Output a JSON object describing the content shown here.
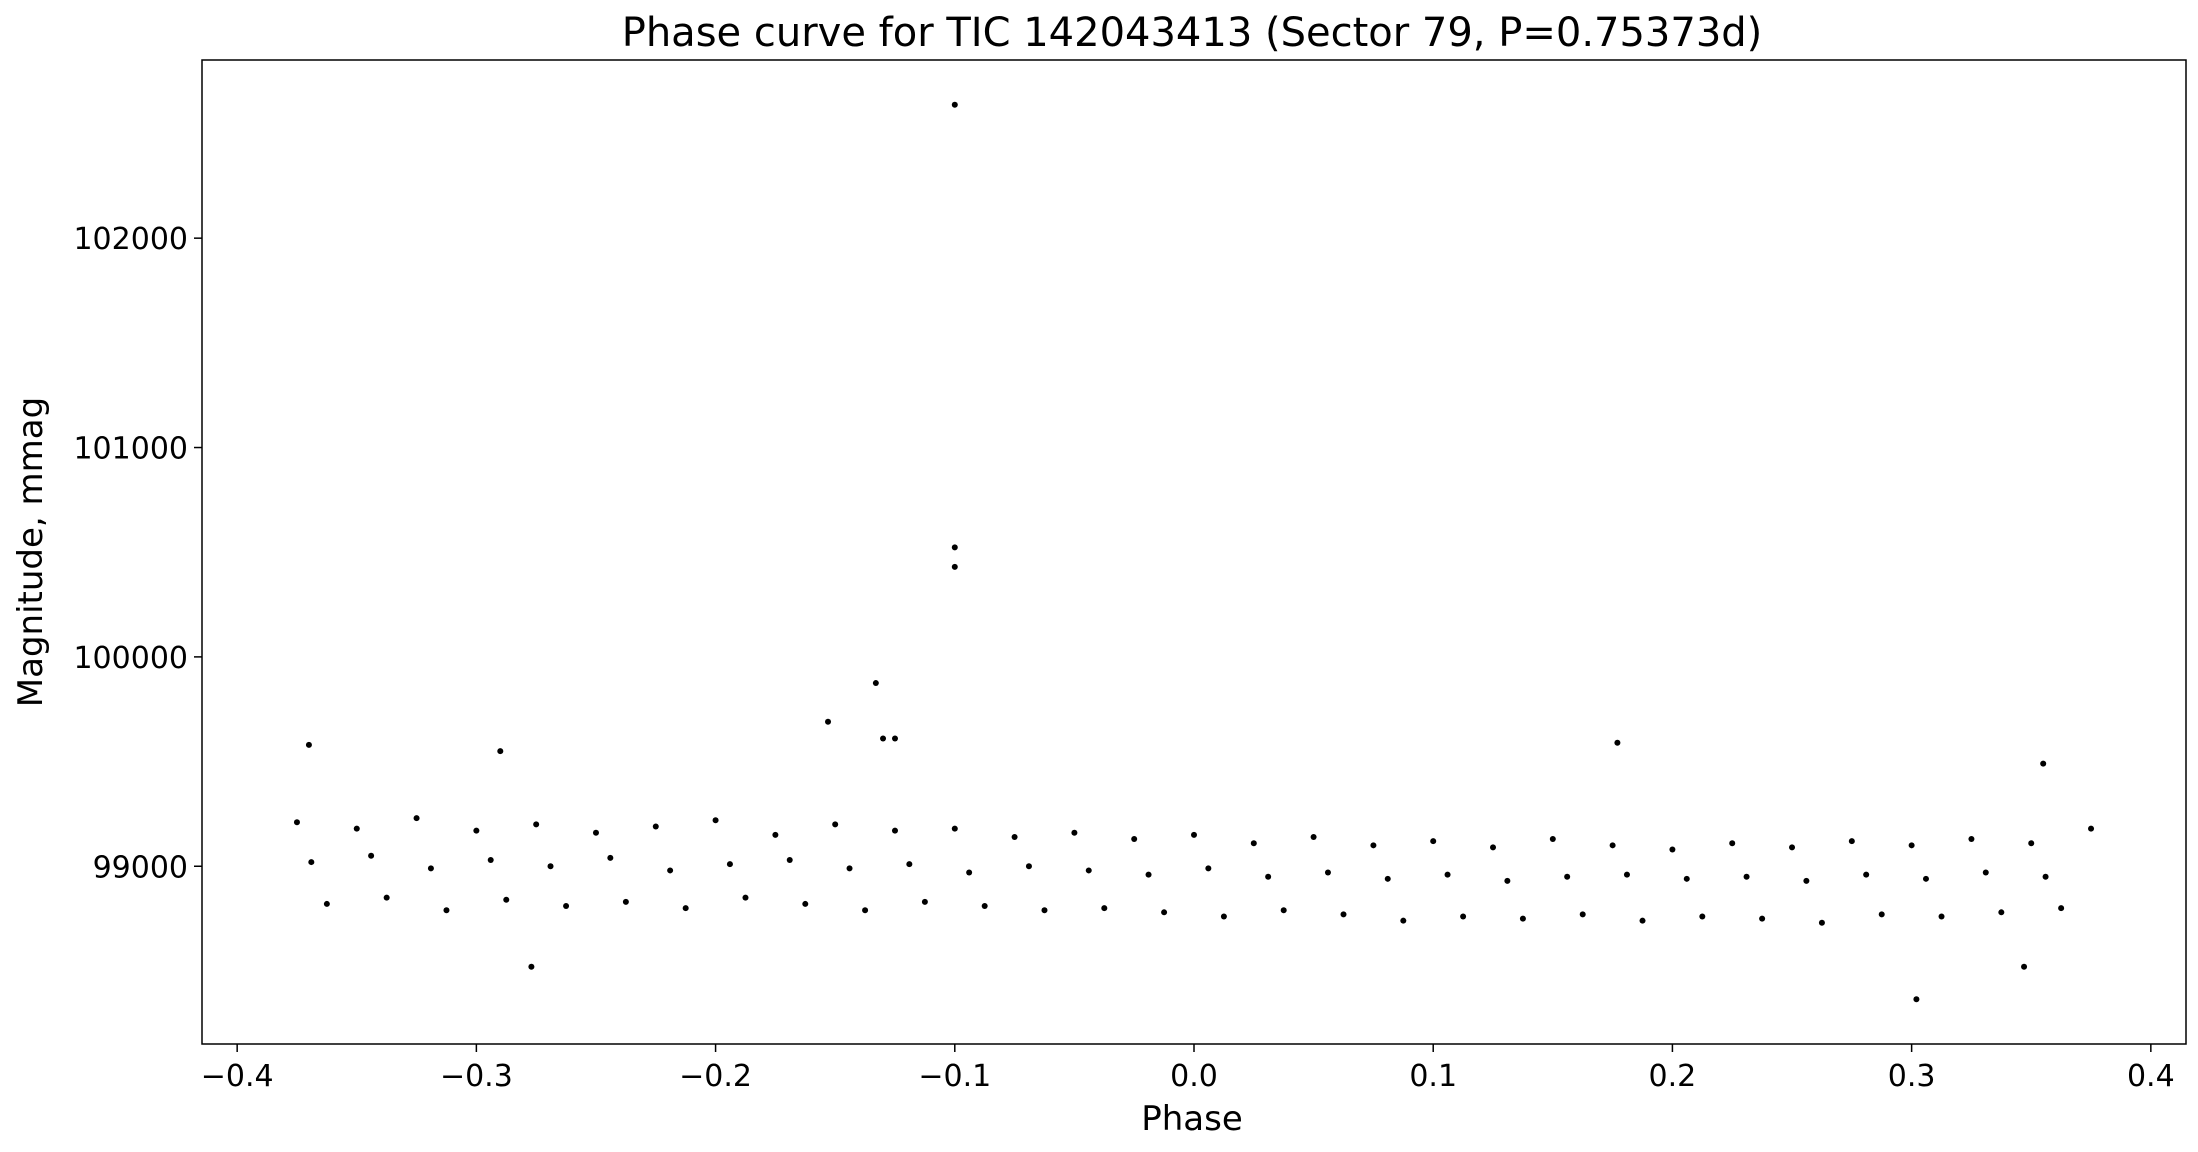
{
  "chart_data": {
    "type": "scatter",
    "title": "Phase curve for TIC 142043413 (Sector 79, P=0.75373d)",
    "x_label": "Phase",
    "y_label": "Magnitude, mmag",
    "color": "#000000",
    "xlim": [
      -0.4147,
      0.4147
    ],
    "ylim": [
      98151,
      102851
    ],
    "xticks": [
      {
        "value": -0.4,
        "label": "−0.4"
      },
      {
        "value": -0.3,
        "label": "−0.3"
      },
      {
        "value": -0.2,
        "label": "−0.2"
      },
      {
        "value": -0.1,
        "label": "−0.1"
      },
      {
        "value": 0,
        "label": "0.0"
      },
      0.1,
      0.2,
      0.3,
      0.4
    ],
    "yticks": [
      99000,
      100000,
      101000,
      102000
    ],
    "x": [
      -0.375,
      -0.35,
      -0.325,
      -0.3,
      -0.275,
      -0.25,
      -0.225,
      -0.2,
      -0.175,
      -0.15,
      -0.125,
      -0.1,
      -0.075,
      -0.05,
      -0.025,
      0,
      0.025,
      0.05,
      0.075,
      0.1,
      0.125,
      0.15,
      0.175,
      0.2,
      0.225,
      0.25,
      0.275,
      0.3,
      0.325,
      0.35,
      0.375,
      -0.3625,
      -0.3375,
      -0.3125,
      -0.2875,
      -0.2625,
      -0.2375,
      -0.2125,
      -0.1875,
      -0.1625,
      -0.1375,
      -0.1125,
      -0.0875,
      -0.0625,
      -0.0375,
      -0.0125,
      0.0125,
      0.0375,
      0.0625,
      0.0875,
      0.1125,
      0.1375,
      0.1625,
      0.1875,
      0.2125,
      0.2375,
      0.2625,
      0.2875,
      0.3125,
      0.3375,
      0.3625,
      -0.369,
      -0.344,
      -0.319,
      -0.294,
      -0.269,
      -0.244,
      -0.219,
      -0.194,
      -0.169,
      -0.144,
      -0.119,
      -0.094,
      -0.069,
      -0.044,
      -0.019,
      0.006,
      0.031,
      0.056,
      0.081,
      0.106,
      0.131,
      0.156,
      0.181,
      0.206,
      0.231,
      0.256,
      0.281,
      0.306,
      0.331,
      0.356,
      -0.1,
      -0.1,
      -0.1,
      -0.133,
      -0.153,
      -0.13,
      -0.125,
      0.177,
      -0.37,
      0.302,
      -0.277,
      0.347,
      0.355,
      -0.29
    ],
    "values": [
      99210,
      99180,
      99230,
      99170,
      99200,
      99160,
      99190,
      99220,
      99150,
      99200,
      99170,
      99180,
      99140,
      99160,
      99130,
      99150,
      99110,
      99140,
      99100,
      99120,
      99090,
      99130,
      99100,
      99080,
      99110,
      99090,
      99120,
      99100,
      99130,
      99110,
      99180,
      98820,
      98850,
      98790,
      98840,
      98810,
      98830,
      98800,
      98850,
      98820,
      98790,
      98830,
      98810,
      98790,
      98800,
      98780,
      98760,
      98790,
      98770,
      98740,
      98760,
      98750,
      98770,
      98740,
      98760,
      98750,
      98730,
      98770,
      98760,
      98780,
      98800,
      99020,
      99050,
      98990,
      99030,
      99000,
      99040,
      98980,
      99010,
      99030,
      98990,
      99010,
      98970,
      99000,
      98980,
      98960,
      98990,
      98950,
      98970,
      98940,
      98960,
      98930,
      98950,
      98960,
      98940,
      98950,
      98930,
      98960,
      98940,
      98970,
      98950,
      102637,
      100523,
      100430,
      99875,
      99690,
      99610,
      99610,
      99590,
      99580,
      98365,
      98520,
      98520,
      99490,
      99550
    ]
  }
}
